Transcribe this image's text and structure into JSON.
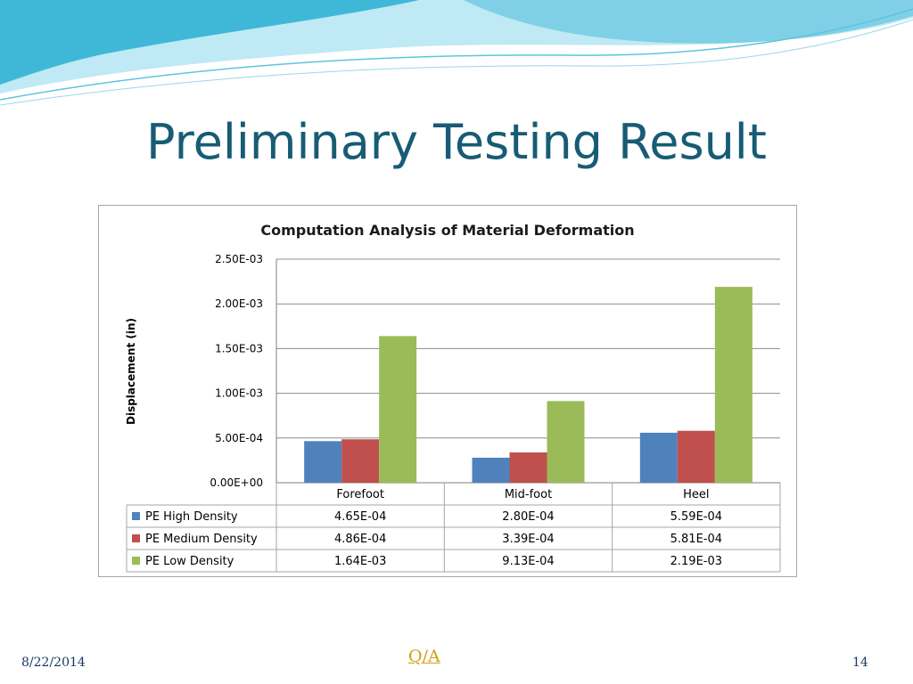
{
  "slide": {
    "title": "Preliminary Testing Result",
    "footer_date": "8/22/2014",
    "footer_link": "Q/A",
    "page_number": "14"
  },
  "colors": {
    "title": "#175c74",
    "wave_dark": "#3fb8d8",
    "wave_light": "#a7e1ef"
  },
  "chart_data": {
    "type": "bar",
    "title": "Computation Analysis of Material Deformation",
    "xlabel": "",
    "ylabel": "Displacement (in)",
    "ylim": [
      0,
      0.0025
    ],
    "yticks": [
      "0.00E+00",
      "5.00E-04",
      "1.00E-03",
      "1.50E-03",
      "2.00E-03",
      "2.50E-03"
    ],
    "ytick_values": [
      0,
      0.0005,
      0.001,
      0.0015,
      0.002,
      0.0025
    ],
    "grid": true,
    "legend": "data-table",
    "categories": [
      "Forefoot",
      "Mid-foot",
      "Heel"
    ],
    "series": [
      {
        "name": "PE High Density",
        "color": "#4f81bd",
        "values": [
          0.000465,
          0.00028,
          0.000559
        ],
        "labels": [
          "4.65E-04",
          "2.80E-04",
          "5.59E-04"
        ]
      },
      {
        "name": "PE Medium Density",
        "color": "#c0504d",
        "values": [
          0.000486,
          0.000339,
          0.000581
        ],
        "labels": [
          "4.86E-04",
          "3.39E-04",
          "5.81E-04"
        ]
      },
      {
        "name": "PE Low Density",
        "color": "#9bbb59",
        "values": [
          0.00164,
          0.000913,
          0.00219
        ],
        "labels": [
          "1.64E-03",
          "9.13E-04",
          "2.19E-03"
        ]
      }
    ]
  }
}
